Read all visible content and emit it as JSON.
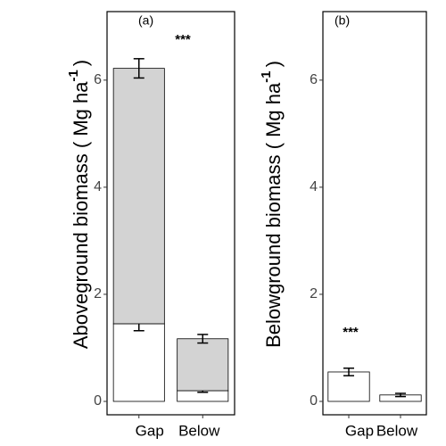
{
  "chart_data": [
    {
      "type": "bar",
      "stacked": true,
      "panel_label": "(a)",
      "annotation": "***",
      "ylabel": "Aboveground biomass ( Mg ha",
      "ylabel_sup": "-1",
      "ylabel_end": ")",
      "categories": [
        "Gap",
        "Below"
      ],
      "series": [
        {
          "color": "#ffffff",
          "values": [
            1.45,
            0.2
          ],
          "errors": [
            0.13,
            0.03
          ]
        },
        {
          "color": "#d3d3d3",
          "values": [
            4.77,
            0.97
          ],
          "errors": [
            0.18,
            0.08
          ]
        }
      ],
      "ylim": [
        -0.25,
        7.28
      ],
      "yticks": [
        0,
        2,
        4,
        6
      ]
    },
    {
      "type": "bar",
      "stacked": true,
      "panel_label": "(b)",
      "annotation": "***",
      "ylabel": "Belowground biomass ( Mg ha",
      "ylabel_sup": "-1",
      "ylabel_end": ")",
      "categories": [
        "Gap",
        "Below"
      ],
      "series": [
        {
          "color": "#ffffff",
          "values": [
            0.55,
            0.12
          ],
          "errors": [
            0.07,
            0.03
          ]
        }
      ],
      "ylim": [
        -0.25,
        7.28
      ],
      "yticks": [
        0,
        2,
        4,
        6
      ]
    }
  ]
}
